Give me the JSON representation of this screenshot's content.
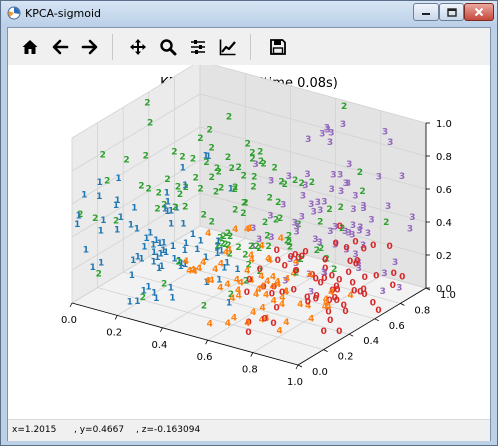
{
  "window": {
    "title": "KPCA-sigmoid"
  },
  "toolbar": {
    "tools": [
      {
        "name": "home-button",
        "icon": "home-icon"
      },
      {
        "name": "back-button",
        "icon": "arrow-left-icon"
      },
      {
        "name": "forward-button",
        "icon": "arrow-right-icon"
      },
      {
        "name": "pan-button",
        "icon": "move-icon"
      },
      {
        "name": "zoom-button",
        "icon": "magnifier-icon"
      },
      {
        "name": "subplots-button",
        "icon": "sliders-icon"
      },
      {
        "name": "edit-axes-button",
        "icon": "line-chart-icon"
      },
      {
        "name": "save-button",
        "icon": "floppy-icon"
      }
    ]
  },
  "plot": {
    "title": "KPCA-sigmoid: (time 0.08s)"
  },
  "status": {
    "x": "x=1.2015",
    "y": ", y=0.4667",
    "z": ", z=-0.163094"
  },
  "chart_data": {
    "type": "scatter",
    "projection": "3d",
    "title": "KPCA-sigmoid: (time 0.08s)",
    "xlabel": "",
    "ylabel": "",
    "zlabel": "",
    "xlim": [
      0.0,
      1.0
    ],
    "ylim": [
      0.0,
      1.0
    ],
    "zlim": [
      0.0,
      1.0
    ],
    "x_ticks": [
      "0.0",
      "0.2",
      "0.4",
      "0.6",
      "0.8",
      "1.0"
    ],
    "y_ticks": [
      "0.0",
      "0.2",
      "0.4",
      "0.6",
      "0.8",
      "1.0"
    ],
    "z_ticks": [
      "0.0",
      "0.2",
      "0.4",
      "0.6",
      "0.8",
      "1.0"
    ],
    "grid": true,
    "marker": "class digit text",
    "colors": {
      "0": "#d62728",
      "1": "#1f77b4",
      "2": "#2ca02c",
      "3": "#9467bd",
      "4": "#ff7f0e"
    },
    "series": [
      {
        "label": "0",
        "color": "#d62728",
        "count": 70,
        "center": [
          0.85,
          0.45,
          0.2
        ],
        "spread": [
          0.12,
          0.2,
          0.12
        ]
      },
      {
        "label": "1",
        "color": "#1f77b4",
        "count": 80,
        "center": [
          0.2,
          0.35,
          0.25
        ],
        "spread": [
          0.15,
          0.2,
          0.2
        ]
      },
      {
        "label": "2",
        "color": "#2ca02c",
        "count": 110,
        "center": [
          0.4,
          0.6,
          0.45
        ],
        "spread": [
          0.25,
          0.25,
          0.2
        ]
      },
      {
        "label": "3",
        "color": "#9467bd",
        "count": 75,
        "center": [
          0.75,
          0.75,
          0.45
        ],
        "spread": [
          0.15,
          0.15,
          0.3
        ]
      },
      {
        "label": "4",
        "color": "#ff7f0e",
        "count": 70,
        "center": [
          0.7,
          0.25,
          0.2
        ],
        "spread": [
          0.15,
          0.15,
          0.12
        ]
      }
    ]
  }
}
